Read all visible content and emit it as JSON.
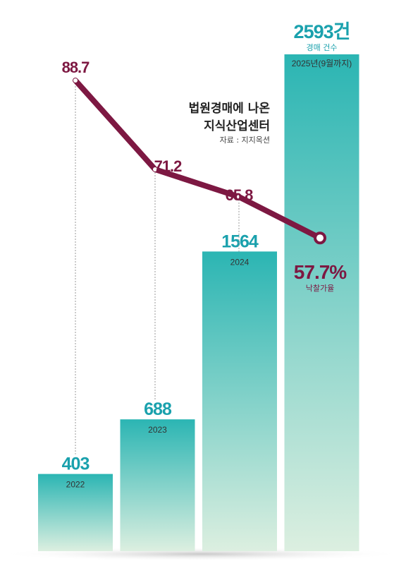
{
  "chart_data": {
    "type": "bar",
    "title_lines": [
      "법원경매에 나온",
      "지식산업센터"
    ],
    "source": "자료 : 지지옥션",
    "categories": [
      "2022",
      "2023",
      "2024",
      "2025년(9월까지)"
    ],
    "series": [
      {
        "name": "경매 건수",
        "type": "bar",
        "values": [
          403,
          688,
          1564,
          2593
        ],
        "labels": [
          "403",
          "688",
          "1564",
          "2593건"
        ]
      },
      {
        "name": "낙찰가율",
        "type": "line",
        "values": [
          88.7,
          71.2,
          65.8,
          57.7
        ],
        "labels": [
          "88.7",
          "71.2",
          "65.8",
          "57.7%"
        ]
      }
    ],
    "colors": {
      "bar_top": "#2bb5b3",
      "bar_bottom": "#dcefe0",
      "bar_label": "#1aa1ad",
      "line": "#7d1842"
    }
  }
}
